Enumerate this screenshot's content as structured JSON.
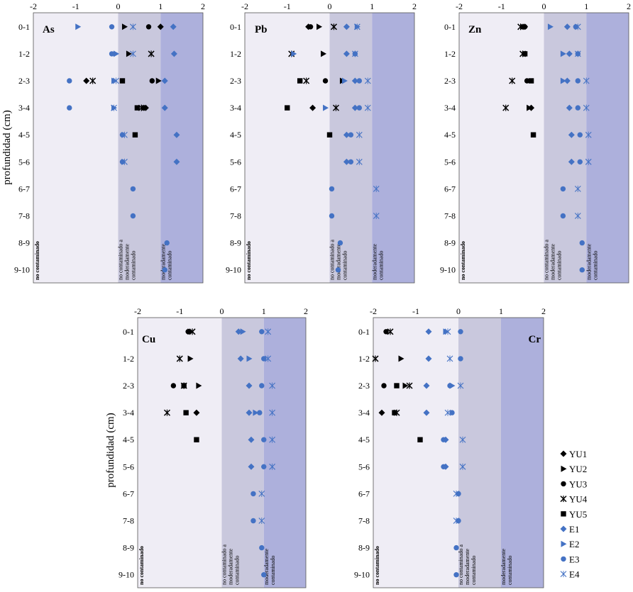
{
  "chart_data": {
    "type": "scatter",
    "y_axis_label": "profundidad (cm)",
    "depth_categories": [
      "0-1",
      "1-2",
      "2-3",
      "3-4",
      "4-5",
      "5-6",
      "6-7",
      "7-8",
      "8-9",
      "9-10"
    ],
    "x_ticks": [
      "-2",
      "-1",
      "0",
      "1",
      "2"
    ],
    "xlim": [
      -2,
      2
    ],
    "zones": [
      {
        "from": -2,
        "to": 0,
        "label": "no contaminado",
        "color": "#efedf5"
      },
      {
        "from": 0,
        "to": 1,
        "label": "no contaminado a moderadamente contaminado",
        "color": "#c9c8dd"
      },
      {
        "from": 1,
        "to": 2,
        "label": "moderadamente contaminado",
        "color": "#adb0dc"
      }
    ],
    "series": [
      {
        "name": "YU1",
        "marker": "diamond",
        "color": "#000000"
      },
      {
        "name": "YU2",
        "marker": "triangle",
        "color": "#000000"
      },
      {
        "name": "YU3",
        "marker": "circle",
        "color": "#000000"
      },
      {
        "name": "YU4",
        "marker": "cross",
        "color": "#000000"
      },
      {
        "name": "YU5",
        "marker": "square",
        "color": "#000000"
      },
      {
        "name": "E1",
        "marker": "diamond",
        "color": "#4472c4"
      },
      {
        "name": "E2",
        "marker": "triangle",
        "color": "#4472c4"
      },
      {
        "name": "E3",
        "marker": "circle",
        "color": "#4472c4"
      },
      {
        "name": "E4",
        "marker": "cross",
        "color": "#4472c4"
      }
    ],
    "panels": [
      {
        "element": "As",
        "label_side": "left",
        "points": {
          "YU1": [
            [
              0,
              1.0
            ],
            [
              2,
              -0.75
            ],
            [
              3,
              0.65
            ]
          ],
          "YU2": [
            [
              0,
              0.15
            ],
            [
              1,
              0.25
            ],
            [
              2,
              0.95
            ],
            [
              3,
              0.6
            ]
          ],
          "YU3": [
            [
              0,
              0.72
            ],
            [
              2,
              0.8
            ],
            [
              3,
              0.6
            ]
          ],
          "YU4": [
            [
              1,
              0.78
            ],
            [
              2,
              -0.6
            ],
            [
              3,
              0.55
            ]
          ],
          "YU5": [
            [
              2,
              0.1
            ],
            [
              3,
              0.45
            ],
            [
              4,
              0.4
            ]
          ],
          "E1": [
            [
              0,
              1.3
            ],
            [
              1,
              1.32
            ],
            [
              2,
              1.1
            ],
            [
              3,
              1.1
            ],
            [
              4,
              1.38
            ],
            [
              5,
              1.38
            ]
          ],
          "E2": [
            [
              0,
              -0.95
            ],
            [
              1,
              -0.05
            ],
            [
              2,
              -0.1
            ],
            [
              3,
              -0.1
            ]
          ],
          "E3": [
            [
              0,
              -0.15
            ],
            [
              1,
              -0.15
            ],
            [
              2,
              -1.15
            ],
            [
              3,
              -1.15
            ],
            [
              4,
              0.1
            ],
            [
              5,
              0.1
            ],
            [
              6,
              0.35
            ],
            [
              7,
              0.35
            ],
            [
              8,
              1.15
            ],
            [
              9,
              1.1
            ]
          ],
          "E4": [
            [
              0,
              0.35
            ],
            [
              1,
              0.35
            ],
            [
              2,
              -0.05
            ],
            [
              3,
              -0.1
            ],
            [
              4,
              0.15
            ],
            [
              5,
              0.15
            ]
          ]
        }
      },
      {
        "element": "Pb",
        "label_side": "left",
        "points": {
          "YU1": [
            [
              0,
              -0.5
            ],
            [
              3,
              -0.4
            ]
          ],
          "YU2": [
            [
              0,
              -0.25
            ],
            [
              1,
              -0.15
            ],
            [
              2,
              0.3
            ]
          ],
          "YU3": [
            [
              0,
              -0.45
            ],
            [
              2,
              -0.1
            ]
          ],
          "YU4": [
            [
              0,
              0.1
            ],
            [
              1,
              -0.9
            ],
            [
              2,
              -0.55
            ],
            [
              3,
              0.15
            ]
          ],
          "YU5": [
            [
              2,
              -0.7
            ],
            [
              3,
              -1.0
            ],
            [
              4,
              0.0
            ]
          ],
          "E1": [
            [
              0,
              0.4
            ],
            [
              1,
              0.4
            ],
            [
              2,
              0.6
            ],
            [
              3,
              0.6
            ],
            [
              4,
              0.4
            ],
            [
              5,
              0.4
            ]
          ],
          "E2": [
            [
              0,
              0.65
            ],
            [
              1,
              -0.85
            ],
            [
              2,
              0.35
            ],
            [
              3,
              -0.1
            ]
          ],
          "E3": [
            [
              1,
              0.6
            ],
            [
              2,
              0.7
            ],
            [
              3,
              0.7
            ],
            [
              4,
              0.5
            ],
            [
              5,
              0.5
            ],
            [
              6,
              0.05
            ],
            [
              7,
              0.05
            ],
            [
              8,
              0.25
            ],
            [
              9,
              0.2
            ]
          ],
          "E4": [
            [
              0,
              0.65
            ],
            [
              1,
              0.6
            ],
            [
              2,
              0.9
            ],
            [
              3,
              0.9
            ],
            [
              4,
              0.7
            ],
            [
              5,
              0.7
            ],
            [
              6,
              1.1
            ],
            [
              7,
              1.1
            ]
          ]
        }
      },
      {
        "element": "Zn",
        "label_side": "left",
        "points": {
          "YU1": [
            [
              0,
              -0.45
            ],
            [
              3,
              -0.3
            ]
          ],
          "YU2": [
            [
              0,
              -0.5
            ],
            [
              3,
              -0.35
            ]
          ],
          "YU3": [
            [
              0,
              -0.45
            ],
            [
              2,
              -0.4
            ]
          ],
          "YU4": [
            [
              0,
              -0.55
            ],
            [
              1,
              -0.5
            ],
            [
              2,
              -0.75
            ],
            [
              3,
              -0.9
            ]
          ],
          "YU5": [
            [
              1,
              -0.45
            ],
            [
              2,
              -0.3
            ],
            [
              4,
              -0.25
            ]
          ],
          "E1": [
            [
              0,
              0.55
            ],
            [
              1,
              0.6
            ],
            [
              2,
              0.55
            ],
            [
              3,
              0.6
            ],
            [
              4,
              0.65
            ],
            [
              5,
              0.65
            ]
          ],
          "E2": [
            [
              0,
              0.15
            ],
            [
              1,
              0.45
            ],
            [
              2,
              0.45
            ]
          ],
          "E3": [
            [
              0,
              0.75
            ],
            [
              1,
              0.8
            ],
            [
              2,
              0.8
            ],
            [
              3,
              0.8
            ],
            [
              4,
              0.85
            ],
            [
              5,
              0.85
            ],
            [
              6,
              0.45
            ],
            [
              7,
              0.45
            ],
            [
              8,
              0.9
            ],
            [
              9,
              0.9
            ]
          ],
          "E4": [
            [
              0,
              0.8
            ],
            [
              1,
              0.8
            ],
            [
              2,
              1.0
            ],
            [
              3,
              1.0
            ],
            [
              4,
              1.05
            ],
            [
              5,
              1.05
            ],
            [
              6,
              0.8
            ],
            [
              7,
              0.8
            ]
          ]
        }
      },
      {
        "element": "Cu",
        "label_side": "left",
        "points": {
          "YU1": [
            [
              3,
              -0.6
            ]
          ],
          "YU2": [
            [
              0,
              -0.75
            ],
            [
              1,
              -0.75
            ],
            [
              2,
              -0.55
            ]
          ],
          "YU3": [
            [
              0,
              -0.8
            ],
            [
              2,
              -1.15
            ]
          ],
          "YU4": [
            [
              0,
              -0.7
            ],
            [
              1,
              -1.0
            ],
            [
              2,
              -0.9
            ],
            [
              3,
              -1.3
            ]
          ],
          "YU5": [
            [
              2,
              -0.9
            ],
            [
              3,
              -0.85
            ],
            [
              4,
              -0.6
            ]
          ],
          "E1": [
            [
              0,
              0.4
            ],
            [
              1,
              0.45
            ],
            [
              2,
              0.65
            ],
            [
              3,
              0.65
            ],
            [
              4,
              0.7
            ],
            [
              5,
              0.7
            ]
          ],
          "E2": [
            [
              0,
              0.5
            ],
            [
              1,
              0.65
            ],
            [
              3,
              0.8
            ]
          ],
          "E3": [
            [
              0,
              0.95
            ],
            [
              1,
              1.0
            ],
            [
              2,
              0.95
            ],
            [
              3,
              0.9
            ],
            [
              4,
              1.0
            ],
            [
              5,
              1.0
            ],
            [
              6,
              0.75
            ],
            [
              7,
              0.75
            ],
            [
              8,
              0.95
            ],
            [
              9,
              1.0
            ]
          ],
          "E4": [
            [
              0,
              1.1
            ],
            [
              1,
              1.1
            ],
            [
              2,
              1.2
            ],
            [
              3,
              1.2
            ],
            [
              4,
              1.2
            ],
            [
              5,
              1.2
            ],
            [
              6,
              0.95
            ],
            [
              7,
              0.95
            ]
          ]
        }
      },
      {
        "element": "Cr",
        "label_side": "right",
        "points": {
          "YU1": [
            [
              3,
              -1.8
            ]
          ],
          "YU2": [
            [
              1,
              -1.35
            ],
            [
              2,
              -1.25
            ]
          ],
          "YU3": [
            [
              0,
              -1.7
            ],
            [
              2,
              -1.75
            ]
          ],
          "YU4": [
            [
              0,
              -1.6
            ],
            [
              1,
              -1.95
            ],
            [
              2,
              -1.15
            ],
            [
              3,
              -1.45
            ]
          ],
          "YU5": [
            [
              2,
              -1.45
            ],
            [
              3,
              -1.5
            ],
            [
              4,
              -0.9
            ]
          ],
          "E1": [
            [
              0,
              -0.7
            ],
            [
              1,
              -0.7
            ],
            [
              2,
              -0.75
            ],
            [
              3,
              -0.75
            ],
            [
              4,
              -0.3
            ],
            [
              5,
              -0.3
            ]
          ],
          "E2": [
            [
              0,
              -0.3
            ],
            [
              2,
              -0.15
            ]
          ],
          "E3": [
            [
              0,
              0.05
            ],
            [
              1,
              0.05
            ],
            [
              2,
              -0.2
            ],
            [
              3,
              -0.15
            ],
            [
              4,
              -0.35
            ],
            [
              5,
              -0.35
            ],
            [
              6,
              0.0
            ],
            [
              7,
              0.0
            ],
            [
              8,
              -0.05
            ],
            [
              9,
              -0.05
            ]
          ],
          "E4": [
            [
              0,
              -0.25
            ],
            [
              1,
              -0.2
            ],
            [
              2,
              0.05
            ],
            [
              3,
              -0.25
            ],
            [
              4,
              0.1
            ],
            [
              5,
              0.1
            ],
            [
              6,
              -0.05
            ],
            [
              7,
              -0.05
            ]
          ]
        }
      }
    ]
  }
}
